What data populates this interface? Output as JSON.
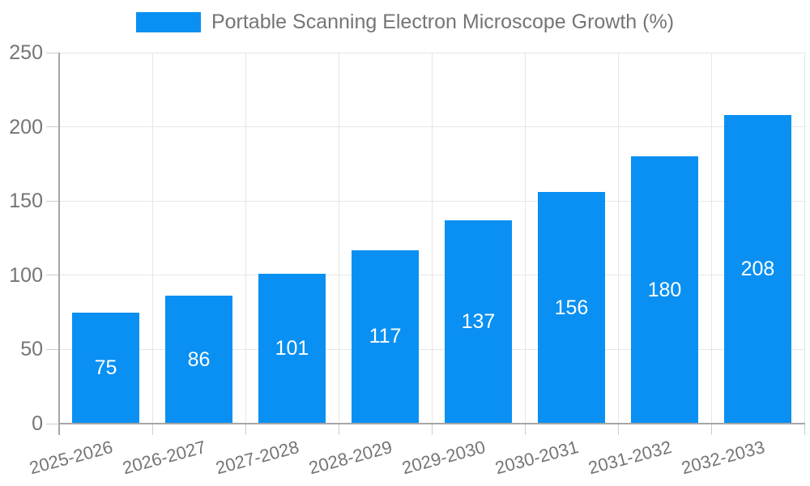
{
  "legend": {
    "label": "Portable Scanning Electron Microscope Growth (%)"
  },
  "colors": {
    "bar": "#0A90F2",
    "grid": "#E6E6E6",
    "axis_line": "#A6A6A6",
    "tick": "#CCCCCC",
    "axis_label": "#757575",
    "legend_label": "#757575",
    "bar_label": "#FFFFFF",
    "background": "#FFFFFF"
  },
  "chart_data": {
    "type": "bar",
    "title": "Portable Scanning Electron Microscope Growth (%)",
    "categories": [
      "2025-2026",
      "2026-2027",
      "2027-2028",
      "2028-2029",
      "2029-2030",
      "2030-2031",
      "2031-2032",
      "2032-2033"
    ],
    "values": [
      75,
      86,
      101,
      117,
      137,
      156,
      180,
      208
    ],
    "xlabel": "",
    "ylabel": "",
    "ylim": [
      0,
      250
    ],
    "yticks": [
      0,
      50,
      100,
      150,
      200,
      250
    ],
    "grid": true,
    "legend_position": "top",
    "bar_labels_inside": true,
    "x_label_rotation_deg": -15
  }
}
